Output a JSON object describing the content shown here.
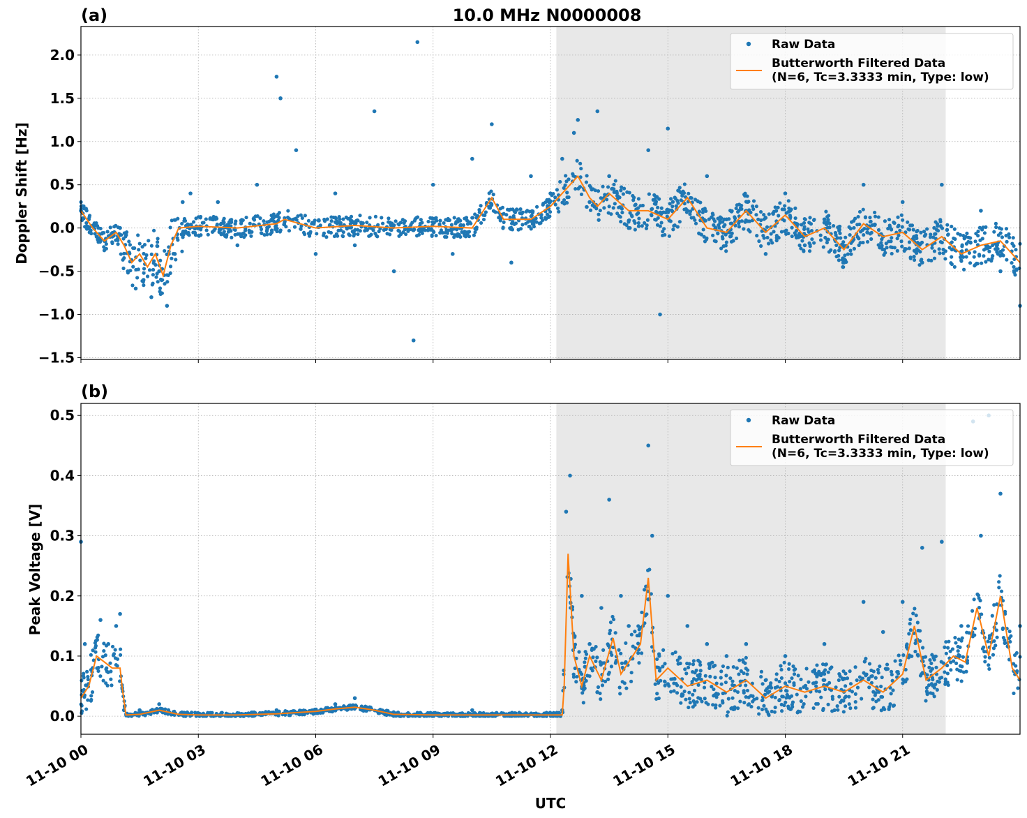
{
  "figure": {
    "title": "10.0 MHz N0000008",
    "xlabel": "UTC",
    "x_tick_labels": [
      "11-10 00",
      "11-10 03",
      "11-10 06",
      "11-10 09",
      "11-10 12",
      "11-10 15",
      "11-10 18",
      "11-10 21"
    ],
    "legend": {
      "raw": "Raw Data",
      "filtered_line1": "Butterworth Filtered Data",
      "filtered_line2": "(N=6, Tc=3.3333 min, Type: low)"
    },
    "colors": {
      "raw": "#1f77b4",
      "filtered": "#ff7f0e",
      "night_shade": "#e8e8e8"
    }
  },
  "chart_data": [
    {
      "type": "scatter",
      "panel_label": "(a)",
      "title": "10.0 MHz N0000008",
      "xlabel": "",
      "ylabel": "Doppler Shift [Hz]",
      "x_unit": "UTC hours",
      "xlim": [
        0,
        24
      ],
      "ylim": [
        -1.52,
        2.33
      ],
      "y_ticks": [
        "2.0",
        "1.5",
        "1.0",
        "0.5",
        "0.0",
        "−0.5",
        "−1.0",
        "−1.5"
      ],
      "y_tick_values": [
        2.0,
        1.5,
        1.0,
        0.5,
        0.0,
        -0.5,
        -1.0,
        -1.5
      ],
      "grid": true,
      "legend_position": "top-right",
      "shaded_x_range": [
        12.15,
        22.1
      ],
      "series": [
        {
          "name": "Raw Data",
          "kind": "points",
          "x": [
            0.0,
            0.2,
            0.4,
            0.6,
            0.8,
            1.0,
            1.2,
            1.4,
            1.6,
            1.8,
            2.0,
            2.2,
            2.4,
            2.6,
            2.8,
            3.0,
            3.5,
            4.0,
            4.5,
            5.0,
            5.1,
            5.5,
            6.0,
            6.5,
            7.0,
            7.5,
            8.0,
            8.5,
            8.6,
            9.0,
            9.5,
            10.0,
            10.5,
            11.0,
            11.5,
            12.0,
            12.3,
            12.6,
            12.7,
            13.0,
            13.2,
            13.5,
            14.0,
            14.5,
            14.8,
            15.0,
            15.5,
            16.0,
            16.5,
            17.0,
            17.5,
            18.0,
            18.5,
            19.0,
            19.5,
            20.0,
            20.5,
            21.0,
            21.5,
            22.0,
            22.5,
            23.0,
            23.5,
            24.0
          ],
          "y": [
            0.2,
            0.1,
            -0.1,
            -0.15,
            -0.1,
            0.0,
            -0.5,
            -0.7,
            -0.6,
            -0.8,
            -0.5,
            -0.9,
            -0.3,
            0.3,
            0.4,
            0.0,
            0.3,
            -0.2,
            0.5,
            1.75,
            1.5,
            0.9,
            -0.3,
            0.4,
            -0.2,
            1.35,
            -0.5,
            -1.3,
            2.15,
            0.5,
            -0.3,
            0.8,
            1.2,
            -0.4,
            0.6,
            0.4,
            0.8,
            1.1,
            1.25,
            0.3,
            1.35,
            0.6,
            0.0,
            0.9,
            -1.0,
            1.15,
            0.2,
            0.6,
            0.1,
            0.2,
            -0.3,
            0.4,
            -0.2,
            0.1,
            -0.4,
            0.5,
            -0.1,
            0.3,
            -0.4,
            0.5,
            -0.3,
            0.2,
            -0.5,
            -0.9
          ]
        },
        {
          "name": "Butterworth Filtered Data",
          "kind": "line",
          "x": [
            0.0,
            0.3,
            0.6,
            0.9,
            1.1,
            1.3,
            1.5,
            1.7,
            1.9,
            2.1,
            2.3,
            2.5,
            3.0,
            4.0,
            5.0,
            5.2,
            6.0,
            7.0,
            8.0,
            9.0,
            10.0,
            10.5,
            10.8,
            11.5,
            12.0,
            12.4,
            12.7,
            13.0,
            13.2,
            13.5,
            14.0,
            14.5,
            15.0,
            15.5,
            16.0,
            16.5,
            17.0,
            17.5,
            18.0,
            18.5,
            19.0,
            19.5,
            20.0,
            20.5,
            21.0,
            21.5,
            22.0,
            22.5,
            23.0,
            23.5,
            24.0
          ],
          "y": [
            0.2,
            0.0,
            -0.15,
            -0.05,
            -0.2,
            -0.4,
            -0.3,
            -0.45,
            -0.3,
            -0.55,
            -0.2,
            0.0,
            0.02,
            0.0,
            0.05,
            0.1,
            0.0,
            0.03,
            0.0,
            0.02,
            0.0,
            0.35,
            0.1,
            0.1,
            0.25,
            0.45,
            0.6,
            0.35,
            0.25,
            0.4,
            0.2,
            0.2,
            0.1,
            0.35,
            0.0,
            -0.05,
            0.2,
            -0.05,
            0.15,
            -0.1,
            0.0,
            -0.25,
            0.05,
            -0.1,
            -0.05,
            -0.25,
            -0.1,
            -0.3,
            -0.2,
            -0.15,
            -0.4
          ]
        }
      ]
    },
    {
      "type": "scatter",
      "panel_label": "(b)",
      "title": "",
      "xlabel": "UTC",
      "ylabel": "Peak Voltage [V]",
      "x_unit": "UTC hours",
      "xlim": [
        0,
        24
      ],
      "ylim": [
        -0.03,
        0.52
      ],
      "y_ticks": [
        "0.5",
        "0.4",
        "0.3",
        "0.2",
        "0.1",
        "0.0"
      ],
      "y_tick_values": [
        0.5,
        0.4,
        0.3,
        0.2,
        0.1,
        0.0
      ],
      "grid": true,
      "legend_position": "top-right",
      "shaded_x_range": [
        12.15,
        22.1
      ],
      "series": [
        {
          "name": "Raw Data",
          "kind": "points",
          "x": [
            0.0,
            0.1,
            0.3,
            0.5,
            0.7,
            0.9,
            1.0,
            1.1,
            1.5,
            2.0,
            3.0,
            5.0,
            6.5,
            7.0,
            8.0,
            10.0,
            12.0,
            12.3,
            12.4,
            12.5,
            12.8,
            13.0,
            13.3,
            13.5,
            13.8,
            14.0,
            14.5,
            14.6,
            15.0,
            15.5,
            16.0,
            16.5,
            17.0,
            18.0,
            19.0,
            20.0,
            20.5,
            21.0,
            21.5,
            22.0,
            22.5,
            22.8,
            23.0,
            23.2,
            23.5,
            24.0
          ],
          "y": [
            0.29,
            0.12,
            0.08,
            0.16,
            0.12,
            0.15,
            0.17,
            0.01,
            0.01,
            0.02,
            0.005,
            0.01,
            0.02,
            0.03,
            0.005,
            0.01,
            0.005,
            0.01,
            0.34,
            0.4,
            0.2,
            0.12,
            0.18,
            0.36,
            0.2,
            0.15,
            0.45,
            0.3,
            0.2,
            0.15,
            0.12,
            0.1,
            0.12,
            0.1,
            0.12,
            0.19,
            0.14,
            0.19,
            0.28,
            0.29,
            0.15,
            0.49,
            0.3,
            0.5,
            0.37,
            0.15
          ]
        },
        {
          "name": "Butterworth Filtered Data",
          "kind": "line",
          "x": [
            0.0,
            0.2,
            0.4,
            0.6,
            0.8,
            1.0,
            1.05,
            1.15,
            1.5,
            2.0,
            2.5,
            3.0,
            4.0,
            5.0,
            6.0,
            6.5,
            7.0,
            7.5,
            8.0,
            9.0,
            10.0,
            11.0,
            12.0,
            12.3,
            12.35,
            12.45,
            12.6,
            12.8,
            13.0,
            13.3,
            13.6,
            13.8,
            14.0,
            14.3,
            14.5,
            14.7,
            15.0,
            15.5,
            16.0,
            16.5,
            17.0,
            17.5,
            18.0,
            18.5,
            19.0,
            19.5,
            20.0,
            20.5,
            21.0,
            21.3,
            21.6,
            22.0,
            22.3,
            22.6,
            22.9,
            23.2,
            23.5,
            23.8,
            24.0
          ],
          "y": [
            0.03,
            0.05,
            0.1,
            0.09,
            0.08,
            0.08,
            0.05,
            0.002,
            0.003,
            0.01,
            0.003,
            0.002,
            0.002,
            0.004,
            0.008,
            0.012,
            0.015,
            0.01,
            0.003,
            0.002,
            0.002,
            0.002,
            0.002,
            0.002,
            0.05,
            0.27,
            0.1,
            0.05,
            0.1,
            0.06,
            0.13,
            0.07,
            0.09,
            0.12,
            0.23,
            0.06,
            0.08,
            0.05,
            0.06,
            0.04,
            0.06,
            0.03,
            0.05,
            0.04,
            0.05,
            0.04,
            0.06,
            0.04,
            0.07,
            0.15,
            0.06,
            0.08,
            0.1,
            0.09,
            0.18,
            0.1,
            0.2,
            0.08,
            0.06
          ]
        }
      ]
    }
  ]
}
